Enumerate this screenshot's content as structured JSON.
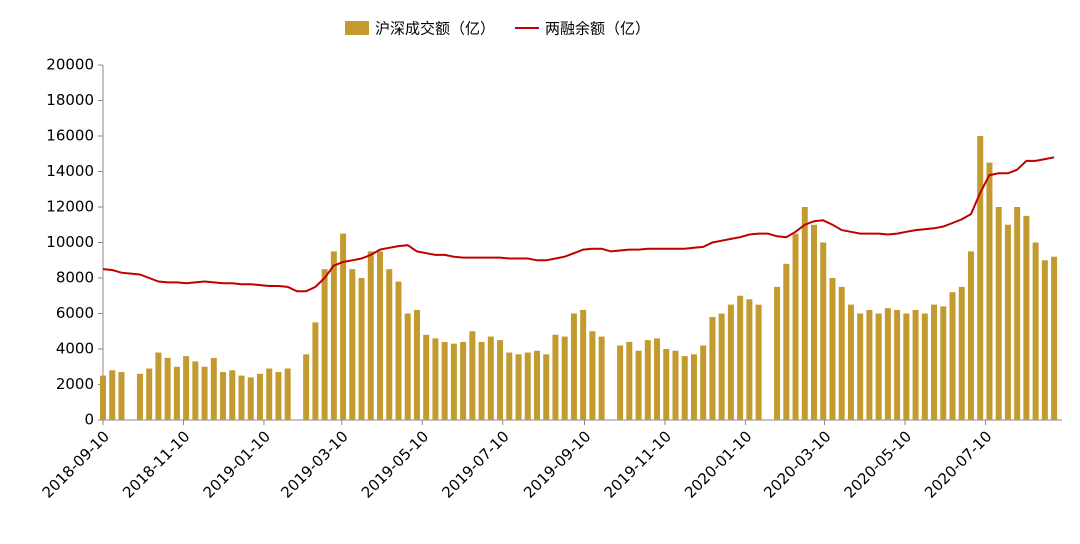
{
  "chart_data": {
    "type": "bar-line",
    "x": [
      "2018-09-10",
      "2018-09-17",
      "2018-09-24",
      "2018-10-01",
      "2018-10-08",
      "2018-10-15",
      "2018-10-22",
      "2018-10-29",
      "2018-11-05",
      "2018-11-12",
      "2018-11-19",
      "2018-11-26",
      "2018-12-03",
      "2018-12-10",
      "2018-12-17",
      "2018-12-24",
      "2018-12-31",
      "2019-01-07",
      "2019-01-14",
      "2019-01-21",
      "2019-01-28",
      "2019-02-04",
      "2019-02-11",
      "2019-02-18",
      "2019-02-25",
      "2019-03-04",
      "2019-03-11",
      "2019-03-18",
      "2019-03-25",
      "2019-04-01",
      "2019-04-08",
      "2019-04-15",
      "2019-04-22",
      "2019-04-29",
      "2019-05-06",
      "2019-05-13",
      "2019-05-20",
      "2019-05-27",
      "2019-06-03",
      "2019-06-10",
      "2019-06-17",
      "2019-06-24",
      "2019-07-01",
      "2019-07-08",
      "2019-07-15",
      "2019-07-22",
      "2019-07-29",
      "2019-08-05",
      "2019-08-12",
      "2019-08-19",
      "2019-08-26",
      "2019-09-02",
      "2019-09-09",
      "2019-09-16",
      "2019-09-23",
      "2019-09-30",
      "2019-10-07",
      "2019-10-14",
      "2019-10-21",
      "2019-10-28",
      "2019-11-04",
      "2019-11-11",
      "2019-11-18",
      "2019-11-25",
      "2019-12-02",
      "2019-12-09",
      "2019-12-16",
      "2019-12-23",
      "2019-12-30",
      "2020-01-06",
      "2020-01-13",
      "2020-01-20",
      "2020-01-27",
      "2020-02-03",
      "2020-02-10",
      "2020-02-17",
      "2020-02-24",
      "2020-03-02",
      "2020-03-09",
      "2020-03-16",
      "2020-03-23",
      "2020-03-30",
      "2020-04-06",
      "2020-04-13",
      "2020-04-20",
      "2020-04-27",
      "2020-05-04",
      "2020-05-11",
      "2020-05-18",
      "2020-05-25",
      "2020-06-01",
      "2020-06-08",
      "2020-06-15",
      "2020-06-22",
      "2020-06-29",
      "2020-07-06",
      "2020-07-13",
      "2020-07-20",
      "2020-07-27",
      "2020-08-03",
      "2020-08-10",
      "2020-08-17",
      "2020-08-24",
      "2020-08-31"
    ],
    "series": [
      {
        "name": "沪深成交额（亿）",
        "type": "bar",
        "color": "#c39a2f",
        "values": [
          2500,
          2800,
          2700,
          null,
          2600,
          2900,
          3800,
          3500,
          3000,
          3600,
          3300,
          3000,
          3500,
          2700,
          2800,
          2500,
          2400,
          2600,
          2900,
          2700,
          2900,
          null,
          3700,
          5500,
          8500,
          9500,
          10500,
          8500,
          8000,
          9500,
          9500,
          8500,
          7800,
          6000,
          6200,
          4800,
          4600,
          4400,
          4300,
          4400,
          5000,
          4400,
          4700,
          4500,
          3800,
          3700,
          3800,
          3900,
          3700,
          4800,
          4700,
          6000,
          6200,
          5000,
          4700,
          null,
          4200,
          4400,
          3900,
          4500,
          4600,
          4000,
          3900,
          3600,
          3700,
          4200,
          5800,
          6000,
          6500,
          7000,
          6800,
          6500,
          null,
          7500,
          8800,
          10500,
          12000,
          11000,
          10000,
          8000,
          7500,
          6500,
          6000,
          6200,
          6000,
          6300,
          6200,
          6000,
          6200,
          6000,
          6500,
          6400,
          7200,
          7500,
          9500,
          16000,
          14500,
          12000,
          11000,
          12000,
          11500,
          10000,
          9000,
          9200
        ]
      },
      {
        "name": "两融余额（亿）",
        "type": "line",
        "color": "#c00000",
        "values": [
          8500,
          8450,
          8300,
          8250,
          8200,
          8000,
          7800,
          7750,
          7750,
          7700,
          7750,
          7800,
          7750,
          7700,
          7700,
          7650,
          7650,
          7600,
          7550,
          7550,
          7500,
          7250,
          7250,
          7500,
          8000,
          8700,
          8900,
          9000,
          9100,
          9300,
          9600,
          9700,
          9800,
          9850,
          9500,
          9400,
          9300,
          9300,
          9200,
          9150,
          9150,
          9150,
          9150,
          9150,
          9100,
          9100,
          9100,
          9000,
          9000,
          9100,
          9200,
          9400,
          9600,
          9650,
          9650,
          9500,
          9550,
          9600,
          9600,
          9650,
          9650,
          9650,
          9650,
          9650,
          9700,
          9750,
          10000,
          10100,
          10200,
          10300,
          10450,
          10500,
          10500,
          10350,
          10300,
          10600,
          11000,
          11200,
          11250,
          11000,
          10700,
          10600,
          10500,
          10500,
          10500,
          10450,
          10500,
          10600,
          10700,
          10750,
          10800,
          10900,
          11100,
          11300,
          11600,
          12800,
          13800,
          13900,
          13900,
          14100,
          14600,
          14600,
          14700,
          14800
        ]
      }
    ],
    "xlim": [
      "2018-09-10",
      "2020-09-06"
    ],
    "xticks": [
      "2018-09-10",
      "2018-11-10",
      "2019-01-10",
      "2019-03-10",
      "2019-05-10",
      "2019-07-10",
      "2019-09-10",
      "2019-11-10",
      "2020-01-10",
      "2020-03-10",
      "2020-05-10",
      "2020-07-10"
    ],
    "ylim": [
      0,
      20000
    ],
    "yticks": [
      0,
      2000,
      4000,
      6000,
      8000,
      10000,
      12000,
      14000,
      16000,
      18000,
      20000
    ]
  }
}
